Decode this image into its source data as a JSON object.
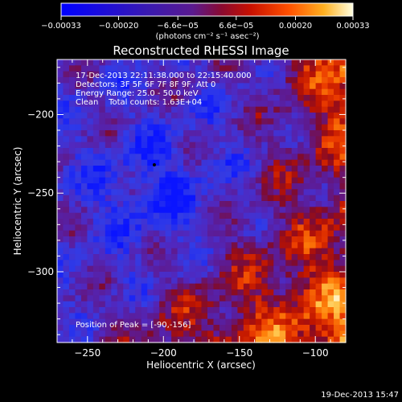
{
  "chart_data": {
    "type": "heatmap",
    "title": "Reconstructed RHESSI Image",
    "xlabel": "Heliocentric X (arcsec)",
    "ylabel": "Heliocentric Y (arcsec)",
    "xlim": [
      -270,
      -80
    ],
    "ylim": [
      -345,
      -165
    ],
    "x_ticks": [
      -250,
      -200,
      -150,
      -100
    ],
    "y_ticks": [
      -200,
      -250,
      -300
    ],
    "colorbar": {
      "range": [
        -0.00033,
        0.00033
      ],
      "unit_label": "(photons cm⁻² s⁻¹ asec⁻²)",
      "ticks": [
        {
          "value": -0.00033,
          "label": "−0.00033"
        },
        {
          "value": -0.0002,
          "label": "−0.00020"
        },
        {
          "value": -6.6e-05,
          "label": "−6.6e−05"
        },
        {
          "value": 6.6e-05,
          "label": "6.6e−05"
        },
        {
          "value": 0.0002,
          "label": "0.00020"
        },
        {
          "value": 0.00033,
          "label": "0.00033"
        }
      ]
    },
    "annotations": [
      "17-Dec-2013 22:11:38.000 to 22:15:40.000",
      "Detectors: 3F 5F 6F 7F 8F 9F, Att 0",
      "Energy Range: 25.0 - 50.0 keV",
      "Clean    Total counts: 1.63E+04"
    ],
    "peak_label": "Position of Peak = [-90,-156]",
    "marker": {
      "x": -206,
      "y": -232
    },
    "grid": false
  },
  "footer": {
    "timestamp": "19-Dec-2013 15:47"
  },
  "colors": {
    "background": "#000000",
    "low": "#1a1aff",
    "mid": "#5a1a9a",
    "high": "#ff6a00",
    "peak": "#ffffc0"
  }
}
